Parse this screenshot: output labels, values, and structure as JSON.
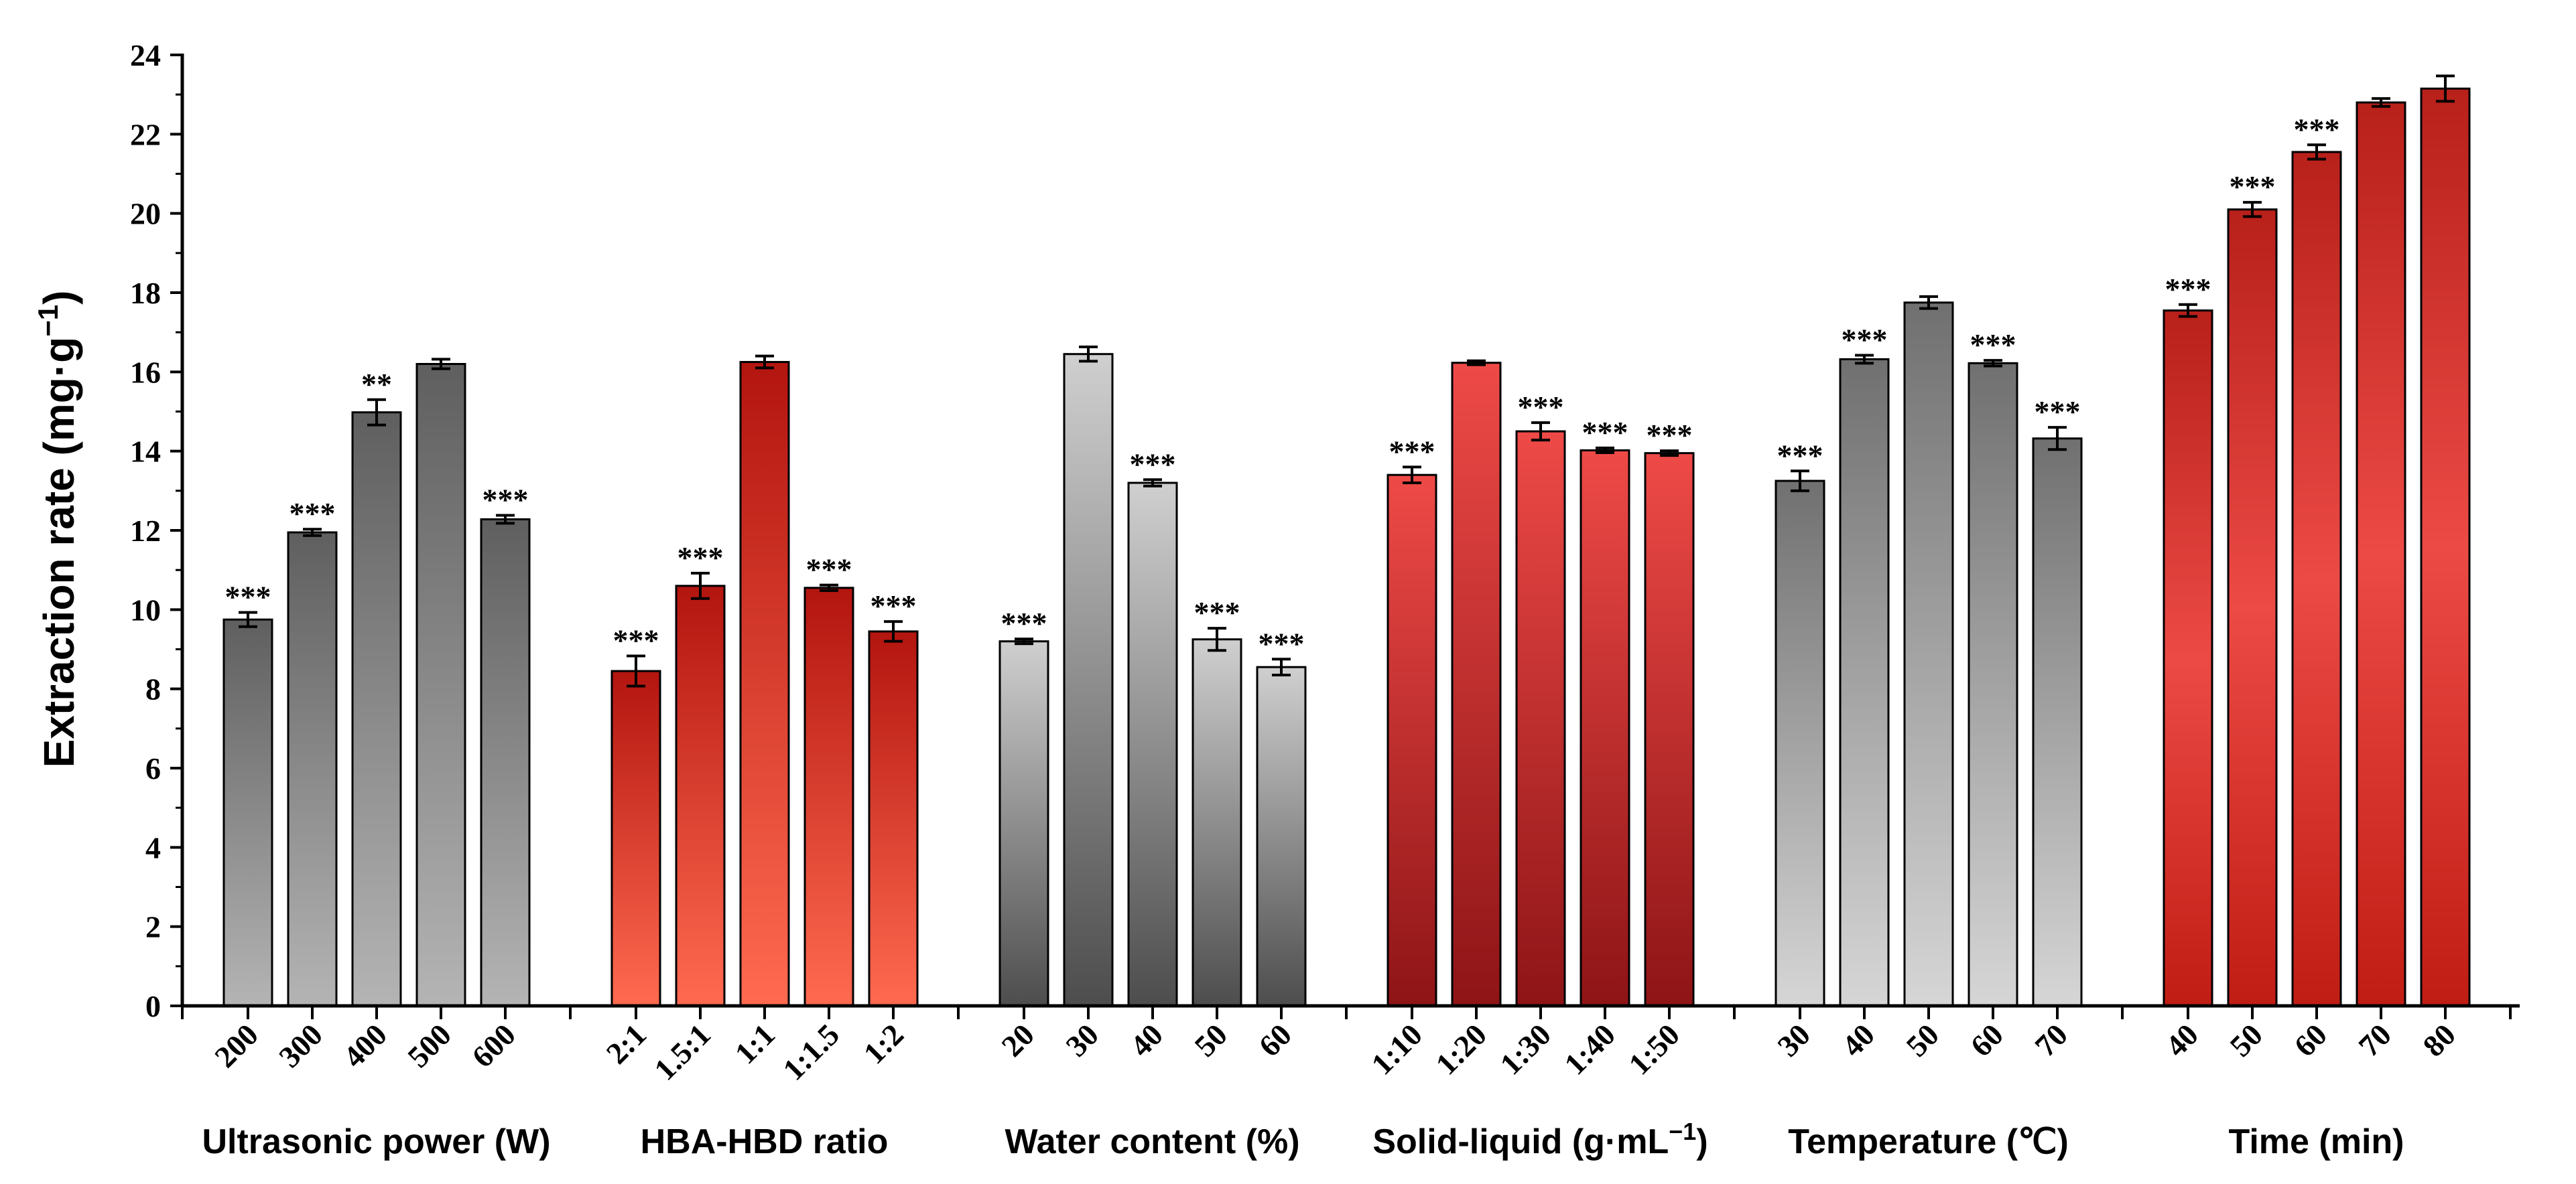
{
  "chart_data": {
    "type": "bar",
    "title": "",
    "ylabel": {
      "main": "Extraction rate (mg·g",
      "sup": "−1",
      "close": ")"
    },
    "ylim": [
      0,
      24
    ],
    "yticks": [
      "0",
      "2",
      "4",
      "6",
      "8",
      "10",
      "12",
      "14",
      "16",
      "18",
      "20",
      "22",
      "24"
    ],
    "grid": false,
    "groups": [
      {
        "name": "Ultrasonic power",
        "label": "Ultrasonic power (W)",
        "style": "gray-dark-top",
        "categories": [
          "200",
          "300",
          "400",
          "500",
          "600"
        ],
        "values": [
          9.75,
          11.95,
          14.98,
          16.2,
          12.28
        ],
        "errors": [
          0.18,
          0.08,
          0.32,
          0.12,
          0.1
        ],
        "significance": [
          "***",
          "***",
          "**",
          "",
          "***"
        ]
      },
      {
        "name": "HBA-HBD ratio",
        "label": "HBA-HBD ratio",
        "style": "red-dark-top",
        "categories": [
          "2:1",
          "1.5:1",
          "1:1",
          "1:1.5",
          "1:2"
        ],
        "values": [
          8.45,
          10.6,
          16.25,
          10.55,
          9.45
        ],
        "errors": [
          0.38,
          0.32,
          0.15,
          0.07,
          0.25
        ],
        "significance": [
          "***",
          "***",
          "",
          "***",
          "***"
        ]
      },
      {
        "name": "Water content",
        "label": "Water content (%)",
        "style": "gray-light-top",
        "categories": [
          "20",
          "30",
          "40",
          "50",
          "60"
        ],
        "values": [
          9.2,
          16.45,
          13.2,
          9.25,
          8.55
        ],
        "errors": [
          0.06,
          0.18,
          0.08,
          0.28,
          0.2
        ],
        "significance": [
          "***",
          "",
          "***",
          "***",
          "***"
        ]
      },
      {
        "name": "Solid-liquid",
        "label": {
          "main": "Solid-liquid (g·mL",
          "sup": "−1",
          "close": ")"
        },
        "style": "red-light-top",
        "categories": [
          "1:10",
          "1:20",
          "1:30",
          "1:40",
          "1:50"
        ],
        "values": [
          13.4,
          16.23,
          14.5,
          14.02,
          13.95
        ],
        "errors": [
          0.2,
          0.05,
          0.22,
          0.06,
          0.06
        ],
        "significance": [
          "***",
          "",
          "***",
          "***",
          "***"
        ]
      },
      {
        "name": "Temperature",
        "label": "Temperature (℃)",
        "style": "gray-light-bottom",
        "categories": [
          "30",
          "40",
          "50",
          "60",
          "70"
        ],
        "values": [
          13.25,
          16.32,
          17.75,
          16.22,
          14.32
        ],
        "errors": [
          0.25,
          0.1,
          0.15,
          0.07,
          0.28
        ],
        "significance": [
          "***",
          "***",
          "",
          "***",
          "***"
        ]
      },
      {
        "name": "Time",
        "label": "Time (min)",
        "style": "red-mid",
        "categories": [
          "40",
          "50",
          "60",
          "70",
          "80"
        ],
        "values": [
          17.55,
          20.1,
          21.55,
          22.8,
          23.15
        ],
        "errors": [
          0.15,
          0.18,
          0.18,
          0.1,
          0.32
        ],
        "significance": [
          "***",
          "***",
          "***",
          "",
          ""
        ]
      }
    ]
  }
}
